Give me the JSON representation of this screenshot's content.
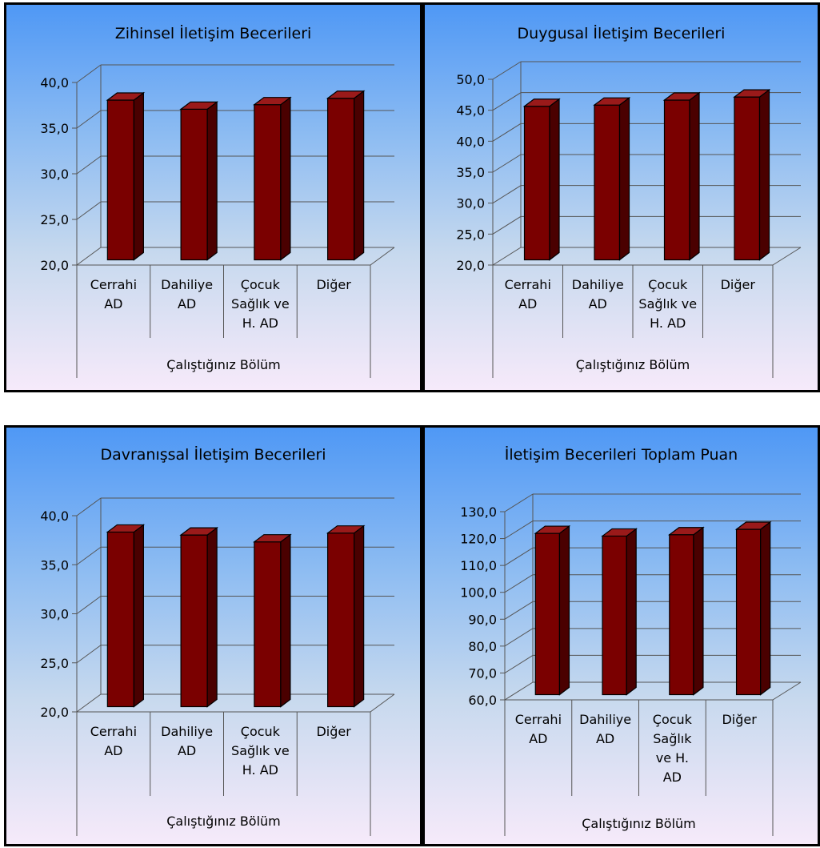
{
  "colors": {
    "bar_front": "#7a0000",
    "bar_side": "#4a0000",
    "bar_top": "#9a1a1a",
    "bar_outline": "#000000",
    "grid": "#555555"
  },
  "chart_data": [
    {
      "type": "bar",
      "title": "Zihinsel İletişim Becerileri",
      "xlabel": "Çalıştığınız Bölüm",
      "ylabel": "",
      "categories": [
        [
          "Cerrahi",
          "AD"
        ],
        [
          "Dahiliye",
          "AD"
        ],
        [
          "Çocuk",
          "Sağlık ve",
          "H. AD"
        ],
        [
          "Diğer"
        ]
      ],
      "values": [
        37.5,
        36.5,
        37.0,
        37.7
      ],
      "ylim": [
        20,
        40
      ],
      "yticks": [
        "20,0",
        "25,0",
        "30,0",
        "35,0",
        "40,0"
      ],
      "grid": true,
      "legend": "none"
    },
    {
      "type": "bar",
      "title": "Duygusal İletişim Becerileri",
      "xlabel": "Çalıştığınız Bölüm",
      "ylabel": "",
      "categories": [
        [
          "Cerrahi",
          "AD"
        ],
        [
          "Dahiliye",
          "AD"
        ],
        [
          "Çocuk",
          "Sağlık ve",
          "H. AD"
        ],
        [
          "Diğer"
        ]
      ],
      "values": [
        44.8,
        45.0,
        45.8,
        46.3
      ],
      "ylim": [
        20,
        50
      ],
      "yticks": [
        "20,0",
        "25,0",
        "30,0",
        "35,0",
        "40,0",
        "45,0",
        "50,0"
      ],
      "grid": true,
      "legend": "none"
    },
    {
      "type": "bar",
      "title": "Davranışsal İletişim Becerileri",
      "xlabel": "Çalıştığınız Bölüm",
      "ylabel": "",
      "categories": [
        [
          "Cerrahi",
          "AD"
        ],
        [
          "Dahiliye",
          "AD"
        ],
        [
          "Çocuk",
          "Sağlık ve",
          "H. AD"
        ],
        [
          "Diğer"
        ]
      ],
      "values": [
        37.8,
        37.5,
        36.8,
        37.7
      ],
      "ylim": [
        20,
        40
      ],
      "yticks": [
        "20,0",
        "25,0",
        "30,0",
        "35,0",
        "40,0"
      ],
      "grid": true,
      "legend": "none"
    },
    {
      "type": "bar",
      "title": "İletişim Becerileri Toplam Puan",
      "xlabel": "Çalıştığınız Bölüm",
      "ylabel": "",
      "categories": [
        [
          "Cerrahi",
          "AD"
        ],
        [
          "Dahiliye",
          "AD"
        ],
        [
          "Çocuk",
          "Sağlık",
          "ve H.",
          "AD"
        ],
        [
          "Diğer"
        ]
      ],
      "values": [
        120.0,
        119.0,
        119.5,
        121.5
      ],
      "ylim": [
        60,
        130
      ],
      "yticks": [
        "60,0",
        "70,0",
        "80,0",
        "90,0",
        "100,0",
        "110,0",
        "120,0",
        "130,0"
      ],
      "grid": true,
      "legend": "none"
    }
  ]
}
